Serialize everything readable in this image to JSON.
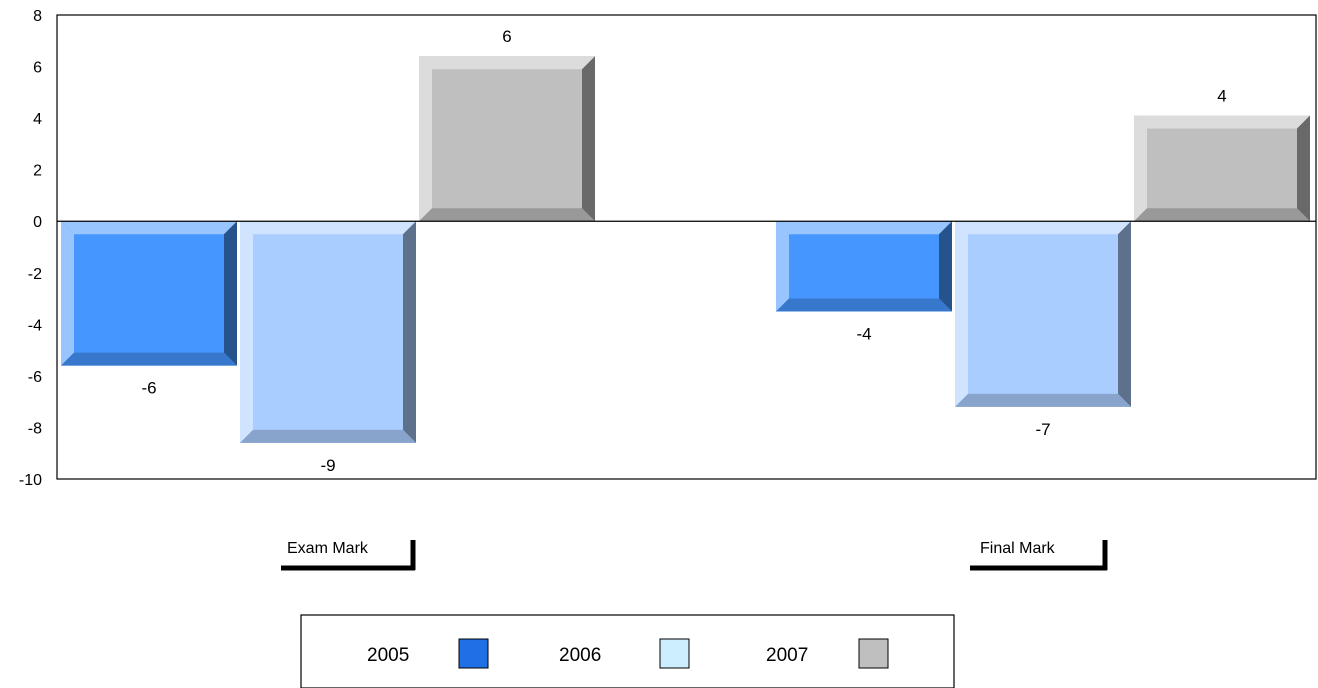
{
  "chart_data": {
    "type": "bar",
    "title": "",
    "xlabel": "",
    "ylabel": "",
    "categories": [
      "Exam Mark",
      "Final Mark"
    ],
    "series": [
      {
        "name": "2005",
        "values": [
          -6,
          -4
        ],
        "display_values": [
          -5.6,
          -3.5
        ],
        "labels": [
          "-6",
          "-4"
        ],
        "color": "#4596ff"
      },
      {
        "name": "2006",
        "values": [
          -9,
          -7
        ],
        "display_values": [
          -8.6,
          -7.2
        ],
        "labels": [
          "-9",
          "-7"
        ],
        "color": "#aacdff"
      },
      {
        "name": "2007",
        "values": [
          6,
          4
        ],
        "display_values": [
          6.4,
          4.1
        ],
        "labels": [
          "6",
          "4"
        ],
        "color": "#bfbfbf"
      }
    ],
    "ylim": [
      -10,
      8
    ],
    "yticks": [
      8,
      6,
      4,
      2,
      0,
      -2,
      -4,
      -6,
      -8,
      -10
    ],
    "grid": false,
    "legend": {
      "position": "bottom",
      "items": [
        {
          "label": "2005",
          "swatch_color": "#1f6fe6"
        },
        {
          "label": "2006",
          "swatch_color": "#cceeff"
        },
        {
          "label": "2007",
          "swatch_color": "#bfbfbf"
        }
      ]
    }
  }
}
